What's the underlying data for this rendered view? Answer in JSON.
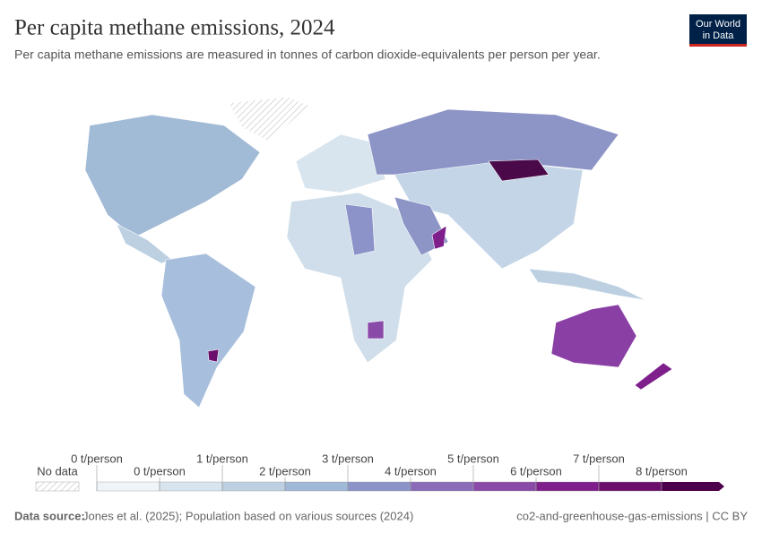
{
  "header": {
    "title": "Per capita methane emissions, 2024",
    "subtitle": "Per capita methane emissions are measured in tonnes of carbon dioxide-equivalents per person per year.",
    "logo": [
      "Our World",
      "in Data"
    ]
  },
  "legend": {
    "no_data": "No data",
    "labels": [
      "0 t/person",
      "0 t/person",
      "1 t/person",
      "2 t/person",
      "3 t/person",
      "4 t/person",
      "5 t/person",
      "6 t/person",
      "7 t/person",
      "8 t/person"
    ],
    "colors": [
      "#eef4f8",
      "#d8e4ee",
      "#bcd0e2",
      "#a0b9d7",
      "#8c93c8",
      "#8a6bb8",
      "#8a4aa8",
      "#7e1f8c",
      "#6b0e6b",
      "#4d004b"
    ]
  },
  "footer": {
    "source_label": "Data source:",
    "source": "Jones et al. (2025); Population based on various sources (2024)",
    "slug": "co2-and-greenhouse-gas-emissions | CC BY"
  }
}
